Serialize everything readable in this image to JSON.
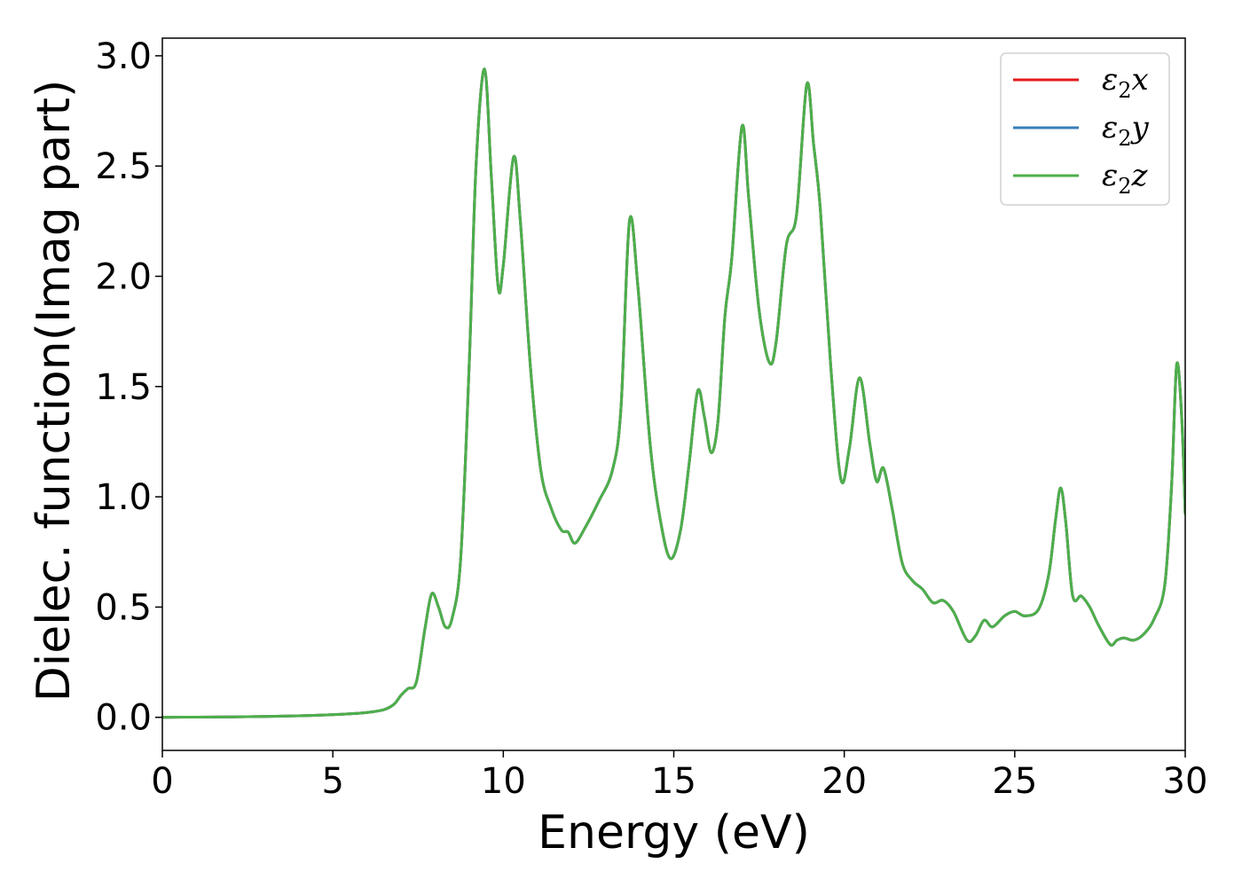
{
  "chart_data": {
    "type": "line",
    "title": "",
    "xlabel": "Energy (eV)",
    "ylabel": "Dielec. function(Imag part)",
    "xlim": [
      0,
      30
    ],
    "ylim": [
      -0.15,
      3.08
    ],
    "x_ticks": [
      0,
      5,
      10,
      15,
      20,
      25,
      30
    ],
    "y_ticks": [
      0.0,
      0.5,
      1.0,
      1.5,
      2.0,
      2.5,
      3.0
    ],
    "x_tick_labels": [
      "0",
      "5",
      "10",
      "15",
      "20",
      "25",
      "30"
    ],
    "y_tick_labels": [
      "0.0",
      "0.5",
      "1.0",
      "1.5",
      "2.0",
      "2.5",
      "3.0"
    ],
    "grid": false,
    "legend_position": "top-right",
    "x": [
      0,
      1,
      2,
      3,
      4,
      5,
      5.5,
      6,
      6.5,
      6.8,
      7.0,
      7.2,
      7.45,
      7.7,
      7.9,
      8.1,
      8.3,
      8.5,
      8.75,
      9.0,
      9.2,
      9.45,
      9.65,
      9.85,
      10.0,
      10.3,
      10.5,
      10.8,
      11.1,
      11.4,
      11.7,
      11.9,
      12.1,
      12.4,
      12.8,
      13.2,
      13.45,
      13.7,
      13.95,
      14.3,
      14.6,
      14.9,
      15.2,
      15.45,
      15.7,
      15.9,
      16.1,
      16.3,
      16.5,
      16.7,
      17.0,
      17.2,
      17.5,
      17.8,
      18.0,
      18.3,
      18.6,
      18.9,
      19.1,
      19.3,
      19.6,
      19.9,
      20.15,
      20.45,
      20.75,
      20.95,
      21.15,
      21.4,
      21.7,
      22.0,
      22.3,
      22.6,
      22.9,
      23.2,
      23.6,
      23.85,
      24.1,
      24.35,
      24.7,
      25.0,
      25.3,
      25.7,
      26.0,
      26.2,
      26.35,
      26.5,
      26.7,
      26.95,
      27.2,
      27.45,
      27.8,
      28.0,
      28.2,
      28.5,
      28.8,
      29.1,
      29.4,
      29.6,
      29.75,
      29.9,
      30.0
    ],
    "series": [
      {
        "name": "ε2x",
        "color": "#e41a1c",
        "values": [
          0.0,
          0.001,
          0.002,
          0.004,
          0.007,
          0.012,
          0.016,
          0.022,
          0.035,
          0.06,
          0.1,
          0.13,
          0.16,
          0.4,
          0.56,
          0.5,
          0.41,
          0.45,
          0.72,
          1.6,
          2.5,
          2.94,
          2.45,
          1.95,
          2.05,
          2.54,
          2.25,
          1.58,
          1.12,
          0.95,
          0.85,
          0.84,
          0.79,
          0.86,
          0.98,
          1.12,
          1.4,
          2.25,
          1.95,
          1.25,
          0.9,
          0.72,
          0.85,
          1.15,
          1.48,
          1.36,
          1.2,
          1.35,
          1.82,
          2.08,
          2.68,
          2.35,
          1.85,
          1.61,
          1.7,
          2.14,
          2.28,
          2.87,
          2.6,
          2.3,
          1.6,
          1.08,
          1.22,
          1.54,
          1.24,
          1.07,
          1.13,
          0.95,
          0.7,
          0.62,
          0.58,
          0.52,
          0.53,
          0.48,
          0.35,
          0.37,
          0.44,
          0.41,
          0.46,
          0.48,
          0.46,
          0.49,
          0.65,
          0.9,
          1.04,
          0.88,
          0.55,
          0.55,
          0.5,
          0.42,
          0.33,
          0.35,
          0.36,
          0.35,
          0.38,
          0.45,
          0.6,
          1.05,
          1.6,
          1.35,
          0.92
        ]
      },
      {
        "name": "ε2y",
        "color": "#377eb8",
        "values": [
          0.0,
          0.001,
          0.002,
          0.004,
          0.007,
          0.012,
          0.016,
          0.022,
          0.035,
          0.06,
          0.1,
          0.13,
          0.16,
          0.4,
          0.56,
          0.5,
          0.41,
          0.45,
          0.72,
          1.6,
          2.5,
          2.94,
          2.45,
          1.95,
          2.05,
          2.54,
          2.25,
          1.58,
          1.12,
          0.95,
          0.85,
          0.84,
          0.79,
          0.86,
          0.98,
          1.12,
          1.4,
          2.25,
          1.95,
          1.25,
          0.9,
          0.72,
          0.85,
          1.15,
          1.48,
          1.36,
          1.2,
          1.35,
          1.82,
          2.08,
          2.68,
          2.35,
          1.85,
          1.61,
          1.7,
          2.14,
          2.28,
          2.87,
          2.6,
          2.3,
          1.6,
          1.08,
          1.22,
          1.54,
          1.24,
          1.07,
          1.13,
          0.95,
          0.7,
          0.62,
          0.58,
          0.52,
          0.53,
          0.48,
          0.35,
          0.37,
          0.44,
          0.41,
          0.46,
          0.48,
          0.46,
          0.49,
          0.65,
          0.9,
          1.04,
          0.88,
          0.55,
          0.55,
          0.5,
          0.42,
          0.33,
          0.35,
          0.36,
          0.35,
          0.38,
          0.45,
          0.6,
          1.05,
          1.6,
          1.35,
          0.92
        ]
      },
      {
        "name": "ε2z",
        "color": "#4daf4a",
        "values": [
          0.0,
          0.001,
          0.002,
          0.004,
          0.007,
          0.012,
          0.016,
          0.022,
          0.035,
          0.06,
          0.1,
          0.13,
          0.16,
          0.4,
          0.56,
          0.5,
          0.41,
          0.45,
          0.72,
          1.6,
          2.5,
          2.94,
          2.45,
          1.95,
          2.05,
          2.54,
          2.25,
          1.58,
          1.12,
          0.95,
          0.85,
          0.84,
          0.79,
          0.86,
          0.98,
          1.12,
          1.4,
          2.25,
          1.95,
          1.25,
          0.9,
          0.72,
          0.85,
          1.15,
          1.48,
          1.36,
          1.2,
          1.35,
          1.82,
          2.08,
          2.68,
          2.35,
          1.85,
          1.61,
          1.7,
          2.14,
          2.28,
          2.87,
          2.6,
          2.3,
          1.6,
          1.08,
          1.22,
          1.54,
          1.24,
          1.07,
          1.13,
          0.95,
          0.7,
          0.62,
          0.58,
          0.52,
          0.53,
          0.48,
          0.35,
          0.37,
          0.44,
          0.41,
          0.46,
          0.48,
          0.46,
          0.49,
          0.65,
          0.9,
          1.04,
          0.88,
          0.55,
          0.55,
          0.5,
          0.42,
          0.33,
          0.35,
          0.36,
          0.35,
          0.38,
          0.45,
          0.6,
          1.05,
          1.6,
          1.35,
          0.92
        ]
      }
    ],
    "legend": [
      {
        "base": "ε",
        "sub": "2",
        "var": "x",
        "color": "#e41a1c"
      },
      {
        "base": "ε",
        "sub": "2",
        "var": "y",
        "color": "#377eb8"
      },
      {
        "base": "ε",
        "sub": "2",
        "var": "z",
        "color": "#4daf4a"
      }
    ]
  }
}
